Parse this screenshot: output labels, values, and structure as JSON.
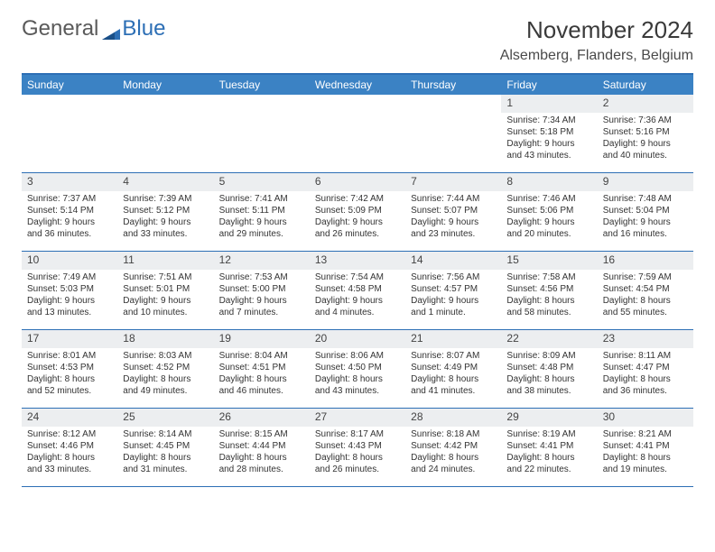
{
  "logo": {
    "word1": "General",
    "word2": "Blue"
  },
  "title": "November 2024",
  "location": "Alsemberg, Flanders, Belgium",
  "colors": {
    "header_bar": "#3b82c4",
    "accent_line": "#2d6fb5",
    "daynum_bg": "#eceef0",
    "text": "#333333"
  },
  "daynames": [
    "Sunday",
    "Monday",
    "Tuesday",
    "Wednesday",
    "Thursday",
    "Friday",
    "Saturday"
  ],
  "weeks": [
    [
      null,
      null,
      null,
      null,
      null,
      {
        "n": "1",
        "sunrise": "Sunrise: 7:34 AM",
        "sunset": "Sunset: 5:18 PM",
        "daylight": "Daylight: 9 hours and 43 minutes."
      },
      {
        "n": "2",
        "sunrise": "Sunrise: 7:36 AM",
        "sunset": "Sunset: 5:16 PM",
        "daylight": "Daylight: 9 hours and 40 minutes."
      }
    ],
    [
      {
        "n": "3",
        "sunrise": "Sunrise: 7:37 AM",
        "sunset": "Sunset: 5:14 PM",
        "daylight": "Daylight: 9 hours and 36 minutes."
      },
      {
        "n": "4",
        "sunrise": "Sunrise: 7:39 AM",
        "sunset": "Sunset: 5:12 PM",
        "daylight": "Daylight: 9 hours and 33 minutes."
      },
      {
        "n": "5",
        "sunrise": "Sunrise: 7:41 AM",
        "sunset": "Sunset: 5:11 PM",
        "daylight": "Daylight: 9 hours and 29 minutes."
      },
      {
        "n": "6",
        "sunrise": "Sunrise: 7:42 AM",
        "sunset": "Sunset: 5:09 PM",
        "daylight": "Daylight: 9 hours and 26 minutes."
      },
      {
        "n": "7",
        "sunrise": "Sunrise: 7:44 AM",
        "sunset": "Sunset: 5:07 PM",
        "daylight": "Daylight: 9 hours and 23 minutes."
      },
      {
        "n": "8",
        "sunrise": "Sunrise: 7:46 AM",
        "sunset": "Sunset: 5:06 PM",
        "daylight": "Daylight: 9 hours and 20 minutes."
      },
      {
        "n": "9",
        "sunrise": "Sunrise: 7:48 AM",
        "sunset": "Sunset: 5:04 PM",
        "daylight": "Daylight: 9 hours and 16 minutes."
      }
    ],
    [
      {
        "n": "10",
        "sunrise": "Sunrise: 7:49 AM",
        "sunset": "Sunset: 5:03 PM",
        "daylight": "Daylight: 9 hours and 13 minutes."
      },
      {
        "n": "11",
        "sunrise": "Sunrise: 7:51 AM",
        "sunset": "Sunset: 5:01 PM",
        "daylight": "Daylight: 9 hours and 10 minutes."
      },
      {
        "n": "12",
        "sunrise": "Sunrise: 7:53 AM",
        "sunset": "Sunset: 5:00 PM",
        "daylight": "Daylight: 9 hours and 7 minutes."
      },
      {
        "n": "13",
        "sunrise": "Sunrise: 7:54 AM",
        "sunset": "Sunset: 4:58 PM",
        "daylight": "Daylight: 9 hours and 4 minutes."
      },
      {
        "n": "14",
        "sunrise": "Sunrise: 7:56 AM",
        "sunset": "Sunset: 4:57 PM",
        "daylight": "Daylight: 9 hours and 1 minute."
      },
      {
        "n": "15",
        "sunrise": "Sunrise: 7:58 AM",
        "sunset": "Sunset: 4:56 PM",
        "daylight": "Daylight: 8 hours and 58 minutes."
      },
      {
        "n": "16",
        "sunrise": "Sunrise: 7:59 AM",
        "sunset": "Sunset: 4:54 PM",
        "daylight": "Daylight: 8 hours and 55 minutes."
      }
    ],
    [
      {
        "n": "17",
        "sunrise": "Sunrise: 8:01 AM",
        "sunset": "Sunset: 4:53 PM",
        "daylight": "Daylight: 8 hours and 52 minutes."
      },
      {
        "n": "18",
        "sunrise": "Sunrise: 8:03 AM",
        "sunset": "Sunset: 4:52 PM",
        "daylight": "Daylight: 8 hours and 49 minutes."
      },
      {
        "n": "19",
        "sunrise": "Sunrise: 8:04 AM",
        "sunset": "Sunset: 4:51 PM",
        "daylight": "Daylight: 8 hours and 46 minutes."
      },
      {
        "n": "20",
        "sunrise": "Sunrise: 8:06 AM",
        "sunset": "Sunset: 4:50 PM",
        "daylight": "Daylight: 8 hours and 43 minutes."
      },
      {
        "n": "21",
        "sunrise": "Sunrise: 8:07 AM",
        "sunset": "Sunset: 4:49 PM",
        "daylight": "Daylight: 8 hours and 41 minutes."
      },
      {
        "n": "22",
        "sunrise": "Sunrise: 8:09 AM",
        "sunset": "Sunset: 4:48 PM",
        "daylight": "Daylight: 8 hours and 38 minutes."
      },
      {
        "n": "23",
        "sunrise": "Sunrise: 8:11 AM",
        "sunset": "Sunset: 4:47 PM",
        "daylight": "Daylight: 8 hours and 36 minutes."
      }
    ],
    [
      {
        "n": "24",
        "sunrise": "Sunrise: 8:12 AM",
        "sunset": "Sunset: 4:46 PM",
        "daylight": "Daylight: 8 hours and 33 minutes."
      },
      {
        "n": "25",
        "sunrise": "Sunrise: 8:14 AM",
        "sunset": "Sunset: 4:45 PM",
        "daylight": "Daylight: 8 hours and 31 minutes."
      },
      {
        "n": "26",
        "sunrise": "Sunrise: 8:15 AM",
        "sunset": "Sunset: 4:44 PM",
        "daylight": "Daylight: 8 hours and 28 minutes."
      },
      {
        "n": "27",
        "sunrise": "Sunrise: 8:17 AM",
        "sunset": "Sunset: 4:43 PM",
        "daylight": "Daylight: 8 hours and 26 minutes."
      },
      {
        "n": "28",
        "sunrise": "Sunrise: 8:18 AM",
        "sunset": "Sunset: 4:42 PM",
        "daylight": "Daylight: 8 hours and 24 minutes."
      },
      {
        "n": "29",
        "sunrise": "Sunrise: 8:19 AM",
        "sunset": "Sunset: 4:41 PM",
        "daylight": "Daylight: 8 hours and 22 minutes."
      },
      {
        "n": "30",
        "sunrise": "Sunrise: 8:21 AM",
        "sunset": "Sunset: 4:41 PM",
        "daylight": "Daylight: 8 hours and 19 minutes."
      }
    ]
  ]
}
